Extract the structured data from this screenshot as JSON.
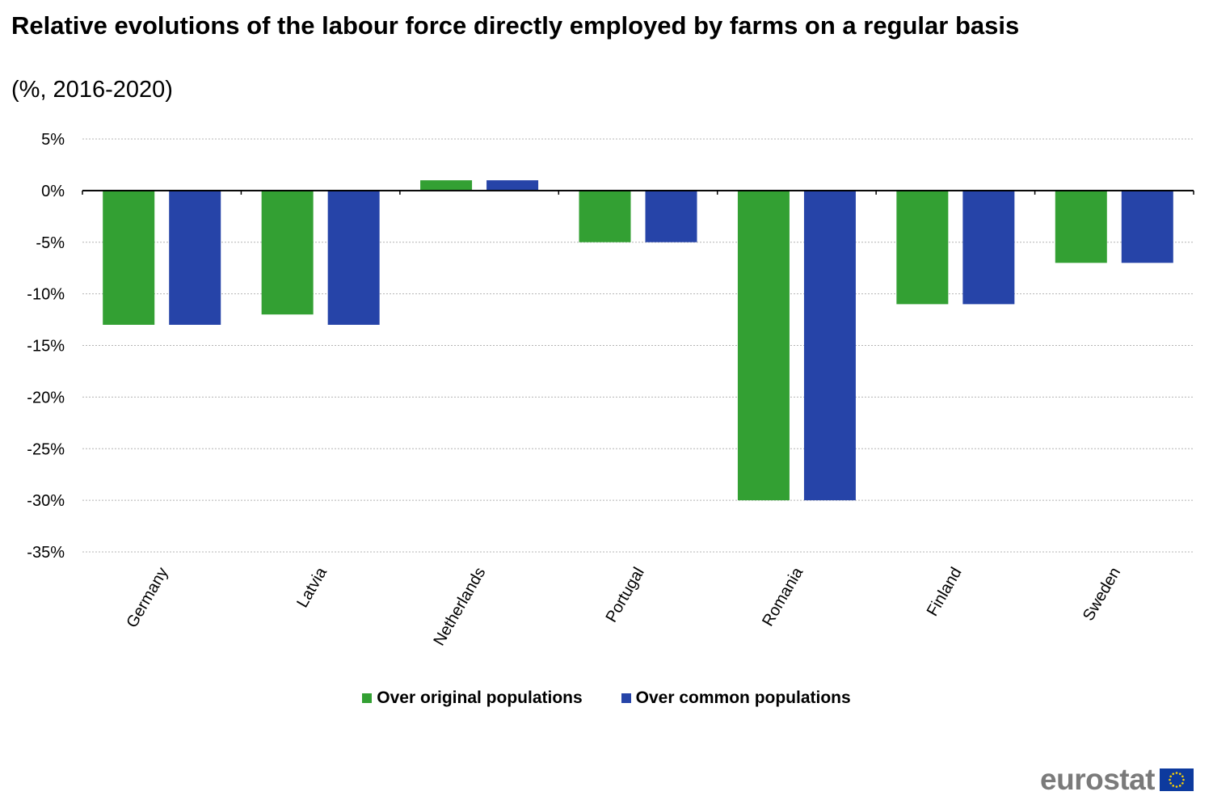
{
  "header": {
    "title": "Relative evolutions of the labour force directly employed by farms on a regular basis",
    "subtitle": "(%, 2016-2020)"
  },
  "chart_data": {
    "type": "bar",
    "categories": [
      "Germany",
      "Latvia",
      "Netherlands",
      "Portugal",
      "Romania",
      "Finland",
      "Sweden"
    ],
    "series": [
      {
        "name": "Over original populations",
        "color": "#33a033",
        "values": [
          -13,
          -12,
          1,
          -5,
          -30,
          -11,
          -7
        ]
      },
      {
        "name": "Over common populations",
        "color": "#2644a8",
        "values": [
          -13,
          -13,
          1,
          -5,
          -30,
          -11,
          -7
        ]
      }
    ],
    "y_ticks": [
      "5%",
      "0%",
      "-5%",
      "-10%",
      "-15%",
      "-20%",
      "-25%",
      "-30%",
      "-35%"
    ],
    "ylim": [
      -35,
      5
    ],
    "grid": true,
    "legend_position": "bottom"
  },
  "logo": {
    "text": "eurostat",
    "flag_color": "#0d3a9e",
    "star_color": "#ffd400"
  }
}
